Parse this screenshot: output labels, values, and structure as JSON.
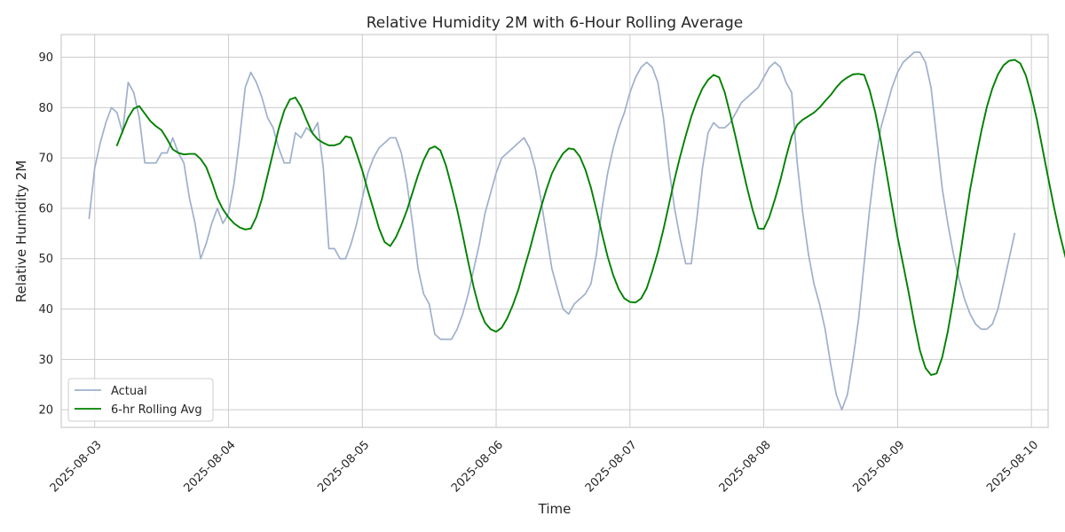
{
  "chart_data": {
    "type": "line",
    "title": "Relative Humidity 2M with 6-Hour Rolling Average",
    "xlabel": "Time",
    "ylabel": "Relative Humidity 2M",
    "ylim": [
      16.5,
      94.5
    ],
    "xlim": [
      "2025-08-02T18:00",
      "2025-08-10T03:00"
    ],
    "grid": true,
    "legend_position": "lower-left",
    "yticks": [
      20,
      30,
      40,
      50,
      60,
      70,
      80,
      90
    ],
    "xticks": [
      "2025-08-03",
      "2025-08-04",
      "2025-08-05",
      "2025-08-06",
      "2025-08-07",
      "2025-08-08",
      "2025-08-09",
      "2025-08-10"
    ],
    "series": [
      {
        "name": "Actual",
        "color": "#9fb0cc",
        "x_start": "2025-08-02T23:00",
        "x_step_hours": 1,
        "values": [
          58,
          68,
          73,
          77,
          80,
          79,
          75,
          85,
          83,
          78,
          69,
          69,
          69,
          71,
          71,
          74,
          71,
          69,
          62,
          57,
          50,
          53,
          57,
          60,
          57,
          59,
          65,
          74,
          84,
          87,
          85,
          82,
          78,
          76,
          72,
          69,
          69,
          75,
          74,
          76,
          75,
          77,
          68,
          52,
          52,
          50,
          50,
          53,
          57,
          62,
          67,
          70,
          72,
          73,
          74,
          74,
          71,
          65,
          57,
          48,
          43,
          41,
          35,
          34,
          34,
          34,
          36,
          39,
          43,
          48,
          53,
          59,
          63,
          67,
          70,
          71,
          72,
          73,
          74,
          72,
          68,
          62,
          55,
          48,
          44,
          40,
          39,
          41,
          42,
          43,
          45,
          51,
          60,
          67,
          72,
          76,
          79,
          83,
          86,
          88,
          89,
          88,
          85,
          78,
          68,
          60,
          54,
          49,
          49,
          58,
          68,
          75,
          77,
          76,
          76,
          77,
          79,
          81,
          82,
          83,
          84,
          86,
          88,
          89,
          88,
          85,
          83,
          69,
          59,
          51,
          45,
          41,
          36,
          29,
          23,
          20,
          23,
          30,
          38,
          49,
          60,
          69,
          76,
          80,
          84,
          87,
          89,
          90,
          91,
          91,
          89,
          84,
          74,
          64,
          57,
          51,
          46,
          42,
          39,
          37,
          36,
          36,
          37,
          40,
          45,
          50,
          55
        ]
      },
      {
        "name": "6-hr Rolling Avg",
        "color": "#008000",
        "x_start": "2025-08-03T04:00",
        "x_step_hours": 1,
        "values": [
          72.5,
          75.3,
          78.0,
          79.8,
          80.3,
          78.8,
          77.3,
          76.3,
          75.5,
          73.7,
          71.7,
          71.0,
          70.7,
          70.8,
          70.8,
          69.8,
          68.2,
          65.3,
          62.0,
          59.8,
          58.2,
          57.0,
          56.2,
          55.8,
          56.0,
          58.3,
          61.9,
          66.5,
          71.1,
          75.8,
          79.4,
          81.6,
          82.0,
          80.2,
          77.5,
          75.0,
          73.7,
          73.0,
          72.5,
          72.5,
          72.9,
          74.3,
          74.0,
          70.8,
          67.5,
          63.5,
          59.8,
          56.0,
          53.3,
          52.5,
          54.2,
          56.7,
          59.6,
          63.1,
          66.6,
          69.6,
          71.8,
          72.3,
          71.5,
          68.5,
          64.3,
          59.8,
          54.7,
          49.3,
          44.2,
          40.0,
          37.3,
          36.0,
          35.5,
          36.3,
          38.2,
          40.8,
          43.9,
          47.9,
          51.7,
          55.9,
          60.0,
          63.7,
          66.9,
          69.1,
          70.9,
          71.9,
          71.7,
          70.3,
          67.7,
          64.1,
          59.6,
          54.9,
          50.4,
          46.7,
          43.9,
          42.1,
          41.4,
          41.3,
          42.1,
          44.1,
          47.5,
          51.3,
          55.8,
          60.8,
          65.8,
          70.3,
          74.4,
          78.2,
          81.3,
          83.8,
          85.5,
          86.5,
          86.0,
          83.0,
          78.6,
          73.9,
          68.9,
          64.1,
          59.7,
          56.0,
          55.9,
          58.3,
          61.8,
          65.7,
          70.2,
          74.3,
          76.6,
          77.6,
          78.3,
          79.0,
          80.0,
          81.3,
          82.5,
          84.0,
          85.2,
          86.0,
          86.6,
          86.7,
          86.5,
          83.4,
          79.0,
          73.4,
          67.1,
          60.6,
          54.3,
          48.8,
          43.2,
          37.2,
          31.8,
          28.3,
          26.9,
          27.2,
          30.4,
          35.5,
          41.9,
          49.0,
          56.5,
          63.7,
          69.6,
          75.2,
          80.1,
          83.8,
          86.6,
          88.4,
          89.3,
          89.5,
          88.8,
          86.4,
          82.4,
          77.5,
          71.8,
          66.1,
          60.5,
          55.3,
          50.8,
          46.4,
          42.8,
          40.0,
          38.2,
          37.8,
          38.8,
          40.7,
          43.8
        ]
      }
    ]
  }
}
